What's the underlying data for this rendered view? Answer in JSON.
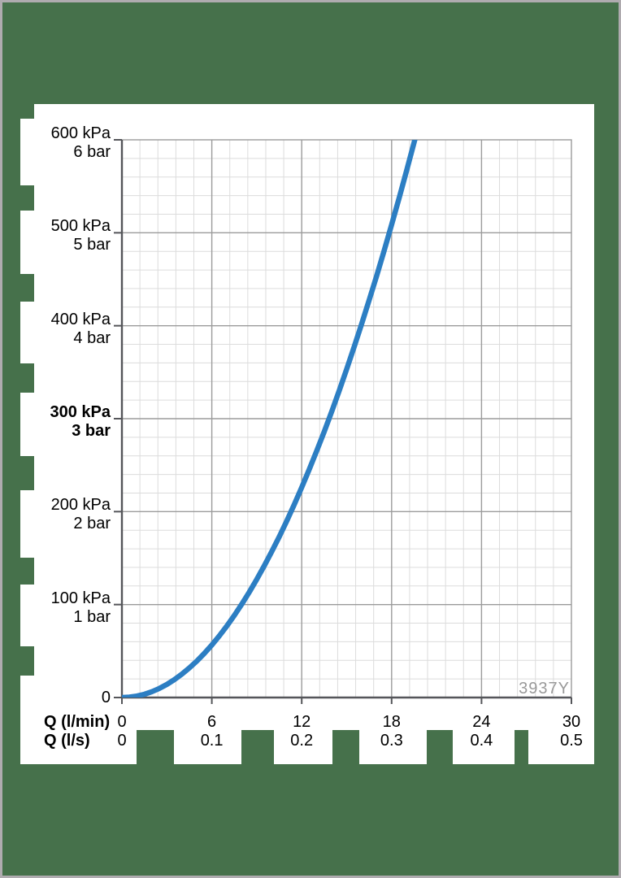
{
  "colors": {
    "page_background": "#46714B",
    "panel_background": "#FFFFFF",
    "frame_border": "#AFABAF",
    "grid_minor": "#DCDCDC",
    "grid_major": "#9B9B9B",
    "axis": "#55565A",
    "text": "#000000",
    "watermark_text": "#9A9A9A",
    "curve": "#2C7EC3"
  },
  "chart_data": {
    "type": "line",
    "title": "",
    "watermark": "3937Y",
    "grid": {
      "minor": true,
      "major": true
    },
    "legend": "none",
    "x_axis": {
      "row1_label": "Q (l/min)",
      "row2_label": "Q (l/s)",
      "xlim": [
        0,
        30
      ],
      "major_step_lmin": 6,
      "minor_step_lmin": 1.2,
      "ticks": [
        {
          "value": 0,
          "lmin": "0",
          "ls": "0"
        },
        {
          "value": 6,
          "lmin": "6",
          "ls": "0.1"
        },
        {
          "value": 12,
          "lmin": "12",
          "ls": "0.2"
        },
        {
          "value": 18,
          "lmin": "18",
          "ls": "0.3"
        },
        {
          "value": 24,
          "lmin": "24",
          "ls": "0.4"
        },
        {
          "value": 30,
          "lmin": "30",
          "ls": "0.5"
        }
      ]
    },
    "y_axis": {
      "ylim": [
        0,
        600
      ],
      "major_step_kpa": 100,
      "minor_step_kpa": 20,
      "zero_label": "0",
      "ticks": [
        {
          "value": 600,
          "kpa": "600 kPa",
          "bar": "6 bar",
          "bold": false
        },
        {
          "value": 500,
          "kpa": "500 kPa",
          "bar": "5 bar",
          "bold": false
        },
        {
          "value": 400,
          "kpa": "400 kPa",
          "bar": "4 bar",
          "bold": false
        },
        {
          "value": 300,
          "kpa": "300 kPa",
          "bar": "3 bar",
          "bold": true
        },
        {
          "value": 200,
          "kpa": "200 kPa",
          "bar": "2 bar",
          "bold": false
        },
        {
          "value": 100,
          "kpa": "100 kPa",
          "bar": "1 bar",
          "bold": false
        }
      ]
    },
    "series": [
      {
        "name": "flow-pressure-curve",
        "color": "#2C7EC3",
        "points_q_lmin_p_kpa": [
          [
            0,
            0
          ],
          [
            0.5,
            0.4
          ],
          [
            1,
            1.6
          ],
          [
            1.5,
            3.5
          ],
          [
            2,
            6.3
          ],
          [
            2.5,
            9.8
          ],
          [
            3,
            14.1
          ],
          [
            3.5,
            19.2
          ],
          [
            4,
            25.1
          ],
          [
            4.5,
            31.8
          ],
          [
            5,
            39.3
          ],
          [
            5.5,
            47.5
          ],
          [
            6,
            56.5
          ],
          [
            6.5,
            66.3
          ],
          [
            7,
            76.9
          ],
          [
            7.5,
            88.3
          ],
          [
            8,
            100.5
          ],
          [
            8.5,
            113.4
          ],
          [
            9,
            127.2
          ],
          [
            9.5,
            141.7
          ],
          [
            10,
            157.0
          ],
          [
            10.5,
            173.1
          ],
          [
            11,
            190.0
          ],
          [
            11.5,
            207.6
          ],
          [
            12,
            226.1
          ],
          [
            12.5,
            245.3
          ],
          [
            13,
            265.3
          ],
          [
            13.5,
            286.1
          ],
          [
            14,
            307.7
          ],
          [
            14.5,
            330.1
          ],
          [
            15,
            353.3
          ],
          [
            15.5,
            377.2
          ],
          [
            16,
            401.9
          ],
          [
            16.5,
            427.4
          ],
          [
            17,
            453.7
          ],
          [
            17.5,
            480.8
          ],
          [
            18,
            508.7
          ],
          [
            18.5,
            537.3
          ],
          [
            19,
            566.8
          ],
          [
            19.5,
            597.0
          ],
          [
            19.9,
            621.9
          ]
        ]
      }
    ]
  }
}
